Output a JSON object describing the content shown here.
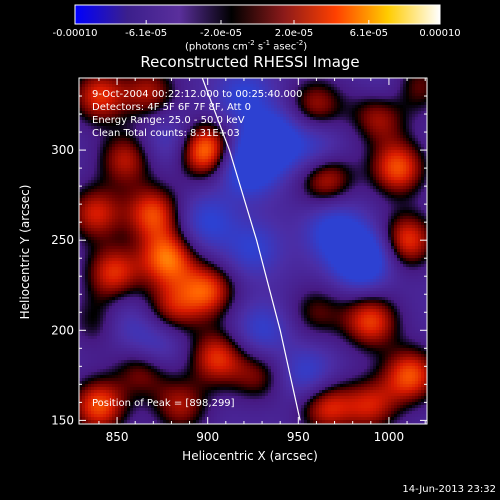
{
  "colorbar": {
    "ticks": [
      {
        "label": "-0.00010",
        "value": -0.0001
      },
      {
        "label": "-6.1e-05",
        "value": -6.1e-05
      },
      {
        "label": "-2.0e-05",
        "value": -2e-05
      },
      {
        "label": "2.0e-05",
        "value": 2e-05
      },
      {
        "label": "6.1e-05",
        "value": 6.1e-05
      },
      {
        "label": "0.00010",
        "value": 0.0001
      }
    ],
    "range": [
      -0.0001,
      0.0001
    ],
    "unit_main": "(photons cm",
    "unit_sup1": "-2",
    "unit_mid1": " s",
    "unit_sup2": "-1",
    "unit_mid2": " asec",
    "unit_sup3": "-2",
    "unit_end": ")",
    "colors": [
      "#0000ff",
      "#3b1f8c",
      "#5a2f9c",
      "#000000",
      "#8b1a1a",
      "#ff4000",
      "#ffcc00",
      "#ffffff"
    ]
  },
  "info": {
    "time_range": "9-Oct-2004 00:22:12.000 to 00:25:40.000",
    "detectors": "Detectors: 4F 5F 6F 7F 8F, Att 0",
    "energy": "Energy Range: 25.0 - 50.0 keV",
    "clean": "Clean      Total counts: 8.31E+03",
    "peak": "Position of Peak = [898,299]"
  },
  "footer": "14-Jun-2013 23:32",
  "chart_data": {
    "type": "heatmap",
    "title": "Reconstructed RHESSI Image",
    "xlabel": "Heliocentric X (arcsec)",
    "ylabel": "Heliocentric Y (arcsec)",
    "xlim": [
      829,
      1021
    ],
    "ylim": [
      148,
      340
    ],
    "xticks": [
      850,
      900,
      950,
      1000
    ],
    "yticks": [
      150,
      200,
      250,
      300
    ],
    "limb_curve": [
      [
        897,
        340
      ],
      [
        912,
        300
      ],
      [
        927,
        250
      ],
      [
        940,
        200
      ],
      [
        951,
        150
      ]
    ],
    "peak_position": [
      898,
      299
    ],
    "blobs": [
      {
        "x": 898,
        "y": 300,
        "v": 1.0
      },
      {
        "x": 840,
        "y": 330,
        "v": 0.7
      },
      {
        "x": 868,
        "y": 332,
        "v": 0.55
      },
      {
        "x": 855,
        "y": 295,
        "v": 0.6
      },
      {
        "x": 838,
        "y": 265,
        "v": 0.65
      },
      {
        "x": 870,
        "y": 265,
        "v": 0.75
      },
      {
        "x": 878,
        "y": 240,
        "v": 0.85
      },
      {
        "x": 848,
        "y": 232,
        "v": 0.7
      },
      {
        "x": 900,
        "y": 222,
        "v": 0.75
      },
      {
        "x": 842,
        "y": 205,
        "v": 0.6
      },
      {
        "x": 880,
        "y": 212,
        "v": 0.55
      },
      {
        "x": 905,
        "y": 185,
        "v": 0.7
      },
      {
        "x": 865,
        "y": 180,
        "v": 0.65
      },
      {
        "x": 840,
        "y": 158,
        "v": 0.8
      },
      {
        "x": 885,
        "y": 158,
        "v": 0.55
      },
      {
        "x": 928,
        "y": 175,
        "v": 0.45
      },
      {
        "x": 960,
        "y": 325,
        "v": 0.55
      },
      {
        "x": 995,
        "y": 320,
        "v": 0.7
      },
      {
        "x": 1015,
        "y": 335,
        "v": 0.5
      },
      {
        "x": 965,
        "y": 285,
        "v": 0.7
      },
      {
        "x": 1005,
        "y": 290,
        "v": 0.8
      },
      {
        "x": 1010,
        "y": 250,
        "v": 0.75
      },
      {
        "x": 990,
        "y": 205,
        "v": 0.75
      },
      {
        "x": 1012,
        "y": 175,
        "v": 0.8
      },
      {
        "x": 965,
        "y": 158,
        "v": 0.7
      },
      {
        "x": 990,
        "y": 158,
        "v": 0.6
      },
      {
        "x": 960,
        "y": 210,
        "v": 0.4
      },
      {
        "x": 935,
        "y": 305,
        "v": -0.9
      },
      {
        "x": 922,
        "y": 290,
        "v": -0.75
      },
      {
        "x": 985,
        "y": 240,
        "v": -1.0
      },
      {
        "x": 970,
        "y": 255,
        "v": -0.6
      },
      {
        "x": 900,
        "y": 260,
        "v": -0.5
      },
      {
        "x": 850,
        "y": 205,
        "v": -0.5
      },
      {
        "x": 870,
        "y": 190,
        "v": -0.55
      },
      {
        "x": 925,
        "y": 245,
        "v": -0.45
      },
      {
        "x": 955,
        "y": 175,
        "v": -0.5
      },
      {
        "x": 930,
        "y": 200,
        "v": -0.45
      },
      {
        "x": 1000,
        "y": 330,
        "v": -0.4
      },
      {
        "x": 960,
        "y": 300,
        "v": -0.45
      },
      {
        "x": 920,
        "y": 330,
        "v": -0.5
      },
      {
        "x": 880,
        "y": 305,
        "v": -0.4
      }
    ],
    "background_level": -0.32
  }
}
